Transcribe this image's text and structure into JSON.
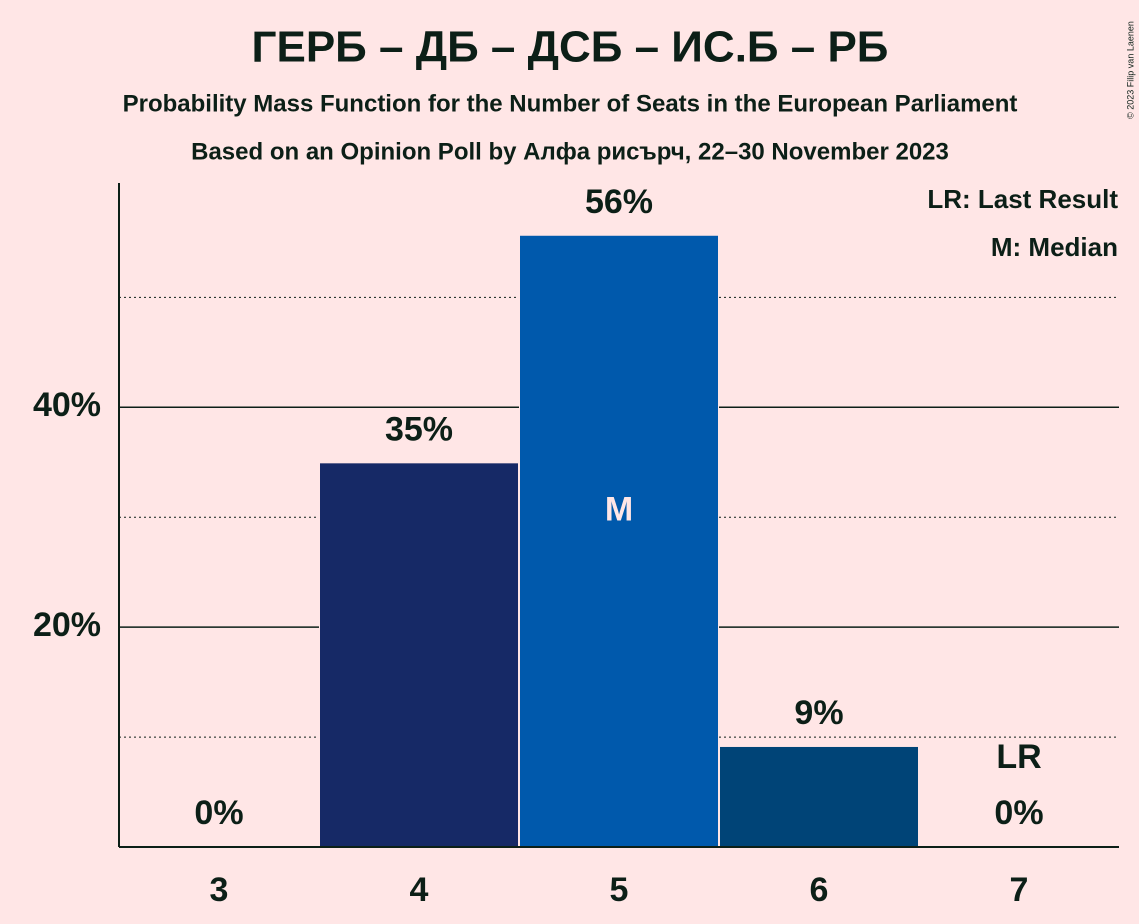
{
  "chart_data": {
    "type": "bar",
    "title": "ГЕРБ – ДБ – ДСБ – ИС.Б – РБ",
    "subtitle": "Probability Mass Function for the Number of Seats in the European Parliament",
    "subtitle2": "Based on an Opinion Poll by Алфа рисърч, 22–30 November 2023",
    "categories": [
      "3",
      "4",
      "5",
      "6",
      "7"
    ],
    "values": [
      0,
      34.9,
      55.6,
      9.1,
      0
    ],
    "value_labels": [
      "0%",
      "35%",
      "56%",
      "9%",
      "0%"
    ],
    "colors": [
      "#162966",
      "#162966",
      "#0059ac",
      "#004477",
      "#004477"
    ],
    "ylim": [
      0,
      60.4
    ],
    "yticks": [
      {
        "value": 20,
        "label": "20%"
      },
      {
        "value": 40,
        "label": "40%"
      }
    ],
    "minor_yticks": [
      10,
      30,
      50
    ],
    "annotations": [
      {
        "text": "M",
        "category": "5"
      },
      {
        "text": "LR",
        "category": "7"
      }
    ],
    "legend": [
      "LR: Last Result",
      "M: Median"
    ],
    "copyright": "© 2023 Filip van Laenen"
  }
}
